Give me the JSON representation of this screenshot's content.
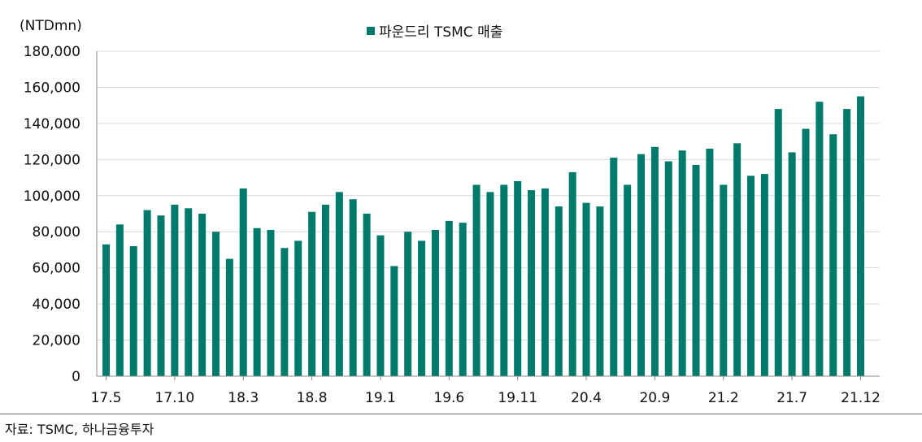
{
  "chart_data": {
    "type": "bar",
    "unit_label": "(NTDmn)",
    "legend": [
      {
        "name": "파운드리 TSMC 매출",
        "color": "#007a6a"
      }
    ],
    "legend_position": "top-center",
    "ylim": [
      0,
      180000
    ],
    "y_ticks": [
      "0",
      "20,000",
      "40,000",
      "60,000",
      "80,000",
      "100,000",
      "120,000",
      "140,000",
      "160,000",
      "180,000"
    ],
    "x_tick_labels": [
      "17.5",
      "17.10",
      "18.3",
      "18.8",
      "19.1",
      "19.6",
      "19.11",
      "20.4",
      "20.9",
      "21.2",
      "21.7",
      "21.12"
    ],
    "grid": "horizontal",
    "series": [
      {
        "name": "파운드리 TSMC 매출",
        "color": "#007a6a",
        "values": [
          73000,
          84000,
          72000,
          92000,
          89000,
          95000,
          93000,
          90000,
          80000,
          65000,
          104000,
          82000,
          81000,
          71000,
          75000,
          91000,
          95000,
          102000,
          98000,
          90000,
          78000,
          61000,
          80000,
          75000,
          81000,
          86000,
          85000,
          106000,
          102000,
          106000,
          108000,
          103000,
          104000,
          94000,
          113000,
          96000,
          94000,
          121000,
          106000,
          123000,
          127000,
          119000,
          125000,
          117000,
          126000,
          106000,
          129000,
          111000,
          112000,
          148000,
          124000,
          137000,
          152000,
          134000,
          148000,
          155000
        ]
      }
    ]
  },
  "source_text": "자료: TSMC, 하나금융투자"
}
